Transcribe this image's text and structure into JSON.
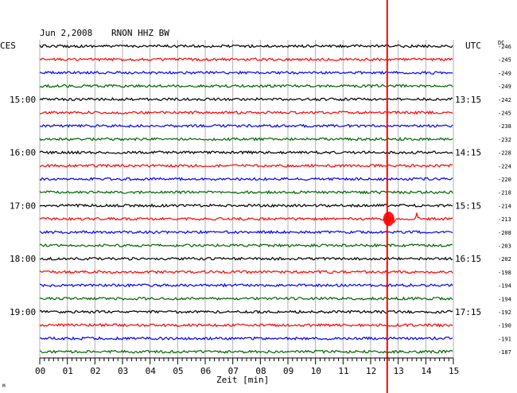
{
  "header": {
    "date": "Jun 2,2008",
    "station": "RNON HHZ BW",
    "left_timezone": "CES",
    "right_timezone": "UTC",
    "dc_label": "DC"
  },
  "x_axis": {
    "label": "Zeit [min]",
    "ticks": [
      "00",
      "01",
      "02",
      "03",
      "04",
      "05",
      "06",
      "07",
      "08",
      "09",
      "10",
      "11",
      "12",
      "13",
      "14",
      "15"
    ]
  },
  "footer_mark": "M",
  "colors": {
    "black": "#000000",
    "red": "#ff0000",
    "blue": "#0000ff",
    "green": "#006400",
    "event": "#ff0000"
  },
  "traces": [
    {
      "color": "black",
      "dc": "-246",
      "left": "",
      "right": ""
    },
    {
      "color": "red",
      "dc": "-245",
      "left": "",
      "right": ""
    },
    {
      "color": "blue",
      "dc": "-249",
      "left": "",
      "right": ""
    },
    {
      "color": "green",
      "dc": "-249",
      "left": "",
      "right": ""
    },
    {
      "color": "black",
      "dc": "-242",
      "left": "15:00",
      "right": "13:15"
    },
    {
      "color": "red",
      "dc": "-245",
      "left": "",
      "right": ""
    },
    {
      "color": "blue",
      "dc": "-238",
      "left": "",
      "right": ""
    },
    {
      "color": "green",
      "dc": "-232",
      "left": "",
      "right": ""
    },
    {
      "color": "black",
      "dc": "-228",
      "left": "16:00",
      "right": "14:15"
    },
    {
      "color": "red",
      "dc": "-224",
      "left": "",
      "right": ""
    },
    {
      "color": "blue",
      "dc": "-220",
      "left": "",
      "right": ""
    },
    {
      "color": "green",
      "dc": "-218",
      "left": "",
      "right": ""
    },
    {
      "color": "black",
      "dc": "-214",
      "left": "17:00",
      "right": "15:15"
    },
    {
      "color": "red",
      "dc": "-213",
      "left": "",
      "right": ""
    },
    {
      "color": "blue",
      "dc": "-208",
      "left": "",
      "right": ""
    },
    {
      "color": "green",
      "dc": "-203",
      "left": "",
      "right": ""
    },
    {
      "color": "black",
      "dc": "-202",
      "left": "18:00",
      "right": "16:15"
    },
    {
      "color": "red",
      "dc": "-198",
      "left": "",
      "right": ""
    },
    {
      "color": "blue",
      "dc": "-194",
      "left": "",
      "right": ""
    },
    {
      "color": "green",
      "dc": "-194",
      "left": "",
      "right": ""
    },
    {
      "color": "black",
      "dc": "-192",
      "left": "19:00",
      "right": "17:15"
    },
    {
      "color": "red",
      "dc": "-190",
      "left": "",
      "right": ""
    },
    {
      "color": "blue",
      "dc": "-191",
      "left": "",
      "right": ""
    },
    {
      "color": "green",
      "dc": "-187",
      "left": "",
      "right": ""
    }
  ],
  "event": {
    "minute": 12.6,
    "secondary_minute": 13.7,
    "trace_index": 13
  }
}
